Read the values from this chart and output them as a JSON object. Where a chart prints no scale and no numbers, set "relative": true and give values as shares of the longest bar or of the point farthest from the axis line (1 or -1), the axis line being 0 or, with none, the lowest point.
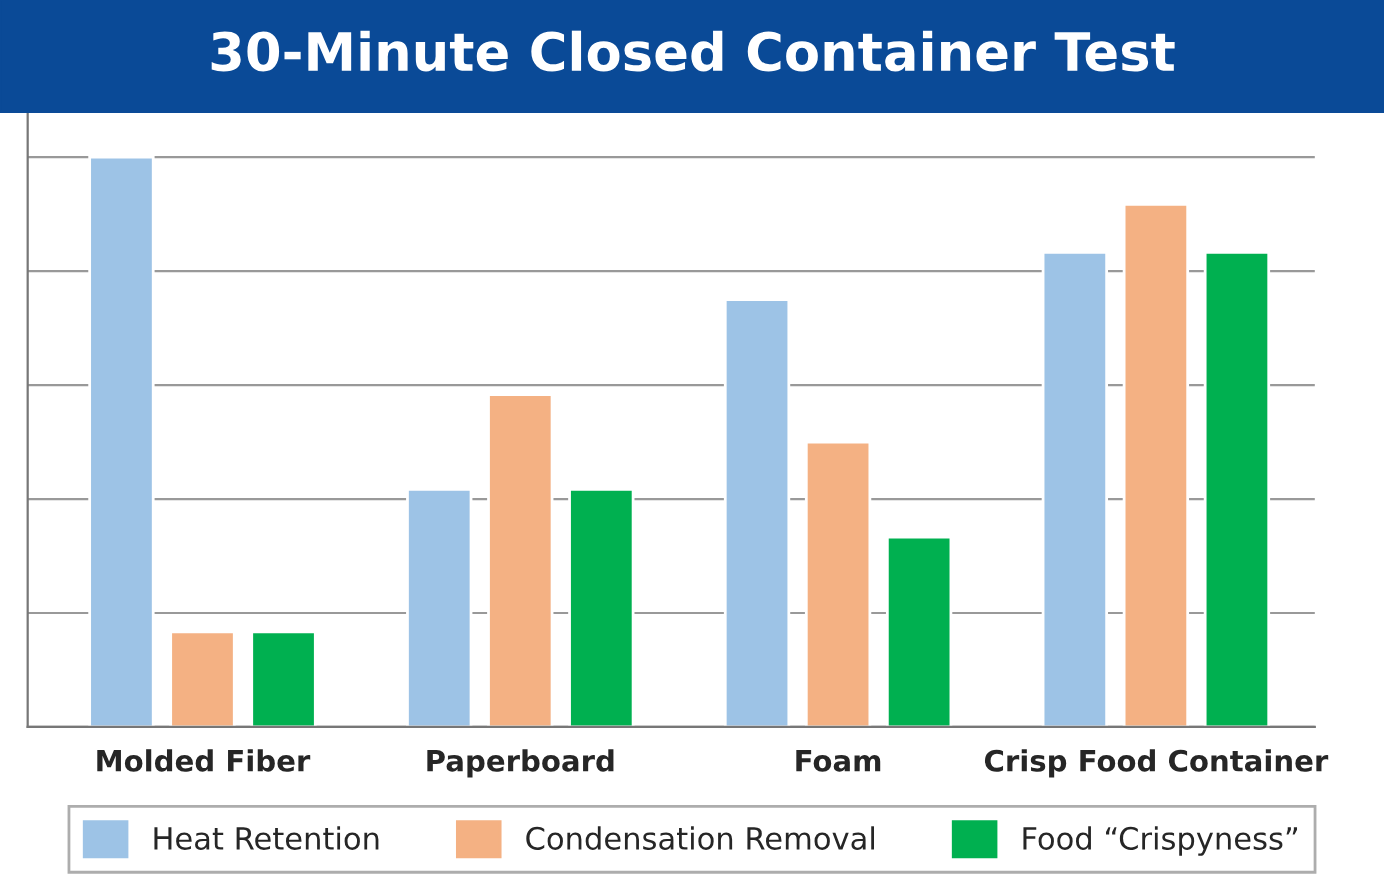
{
  "chart_data": {
    "type": "bar",
    "title": "30-Minute Closed Container Test",
    "categories": [
      "Molded Fiber",
      "Paperboard",
      "Foam",
      "Crisp Food Container"
    ],
    "relative": true,
    "grid": "y",
    "legend": "bottom",
    "series": [
      {
        "name": "Heat Retention",
        "color": "#9dc3e6",
        "values": [
          1.0,
          0.417,
          0.75,
          0.833
        ]
      },
      {
        "name": "Condensation Removal",
        "color": "#f4b183",
        "values": [
          0.167,
          0.583,
          0.5,
          0.917
        ]
      },
      {
        "name": "Food “Crispyness”",
        "color": "#00b050",
        "values": [
          0.167,
          0.417,
          0.333,
          0.833
        ]
      }
    ]
  }
}
